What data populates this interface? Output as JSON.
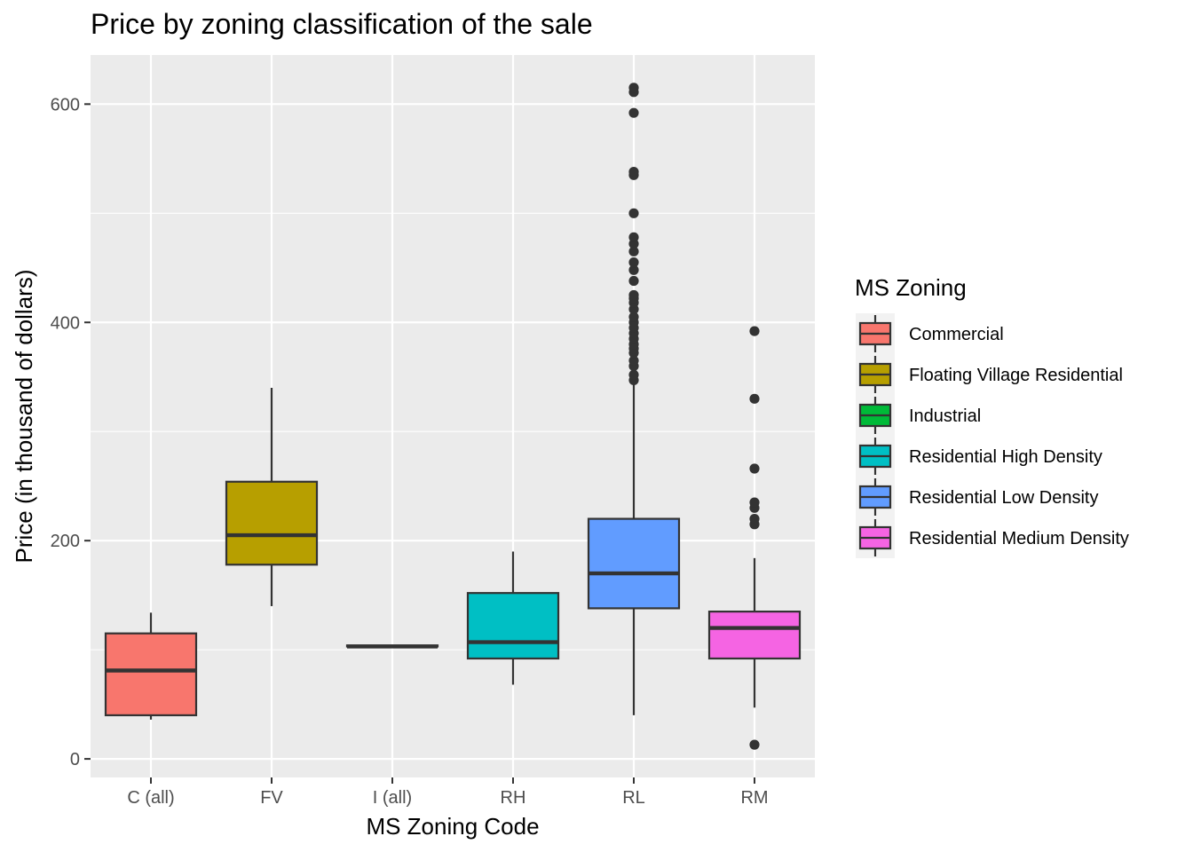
{
  "chart_data": {
    "type": "boxplot",
    "title": "Price by zoning classification of the sale",
    "xlabel": "MS Zoning Code",
    "ylabel": "Price (in thousand of dollars)",
    "ylim": [
      -17,
      645
    ],
    "yticks": [
      0,
      200,
      400,
      600
    ],
    "grid": true,
    "legend": {
      "title": "MS Zoning",
      "position": "right",
      "entries": [
        {
          "label": "Commercial",
          "color": "#F8766D"
        },
        {
          "label": "Floating Village Residential",
          "color": "#B79F00"
        },
        {
          "label": "Industrial",
          "color": "#00BA38"
        },
        {
          "label": "Residential High Density",
          "color": "#00BFC4"
        },
        {
          "label": "Residential Low Density",
          "color": "#619CFF"
        },
        {
          "label": "Residential Medium Density",
          "color": "#F564E3"
        }
      ]
    },
    "categories": [
      "C (all)",
      "FV",
      "I (all)",
      "RH",
      "RL",
      "RM"
    ],
    "series": [
      {
        "category": "C (all)",
        "color": "#F8766D",
        "min": 36,
        "q1": 40,
        "median": 81,
        "q3": 115,
        "max": 134,
        "outliers": []
      },
      {
        "category": "FV",
        "color": "#B79F00",
        "min": 140,
        "q1": 178,
        "median": 205,
        "q3": 254,
        "max": 340,
        "outliers": []
      },
      {
        "category": "I (all)",
        "color": "#00BA38",
        "min": 103,
        "q1": 103,
        "median": 103,
        "q3": 104,
        "max": 104,
        "outliers": []
      },
      {
        "category": "RH",
        "color": "#00BFC4",
        "min": 68,
        "q1": 92,
        "median": 107,
        "q3": 152,
        "max": 190,
        "outliers": []
      },
      {
        "category": "RL",
        "color": "#619CFF",
        "min": 40,
        "q1": 138,
        "median": 170,
        "q3": 220,
        "max": 345,
        "outliers": [
          347,
          352,
          360,
          365,
          372,
          376,
          380,
          385,
          390,
          395,
          400,
          405,
          412,
          418,
          422,
          425,
          438,
          448,
          455,
          465,
          472,
          478,
          500,
          535,
          538,
          592,
          611,
          615
        ]
      },
      {
        "category": "RM",
        "color": "#F564E3",
        "min": 47,
        "q1": 92,
        "median": 120,
        "q3": 135,
        "max": 184,
        "outliers": [
          13,
          215,
          220,
          230,
          235,
          266,
          330,
          392
        ]
      }
    ]
  }
}
